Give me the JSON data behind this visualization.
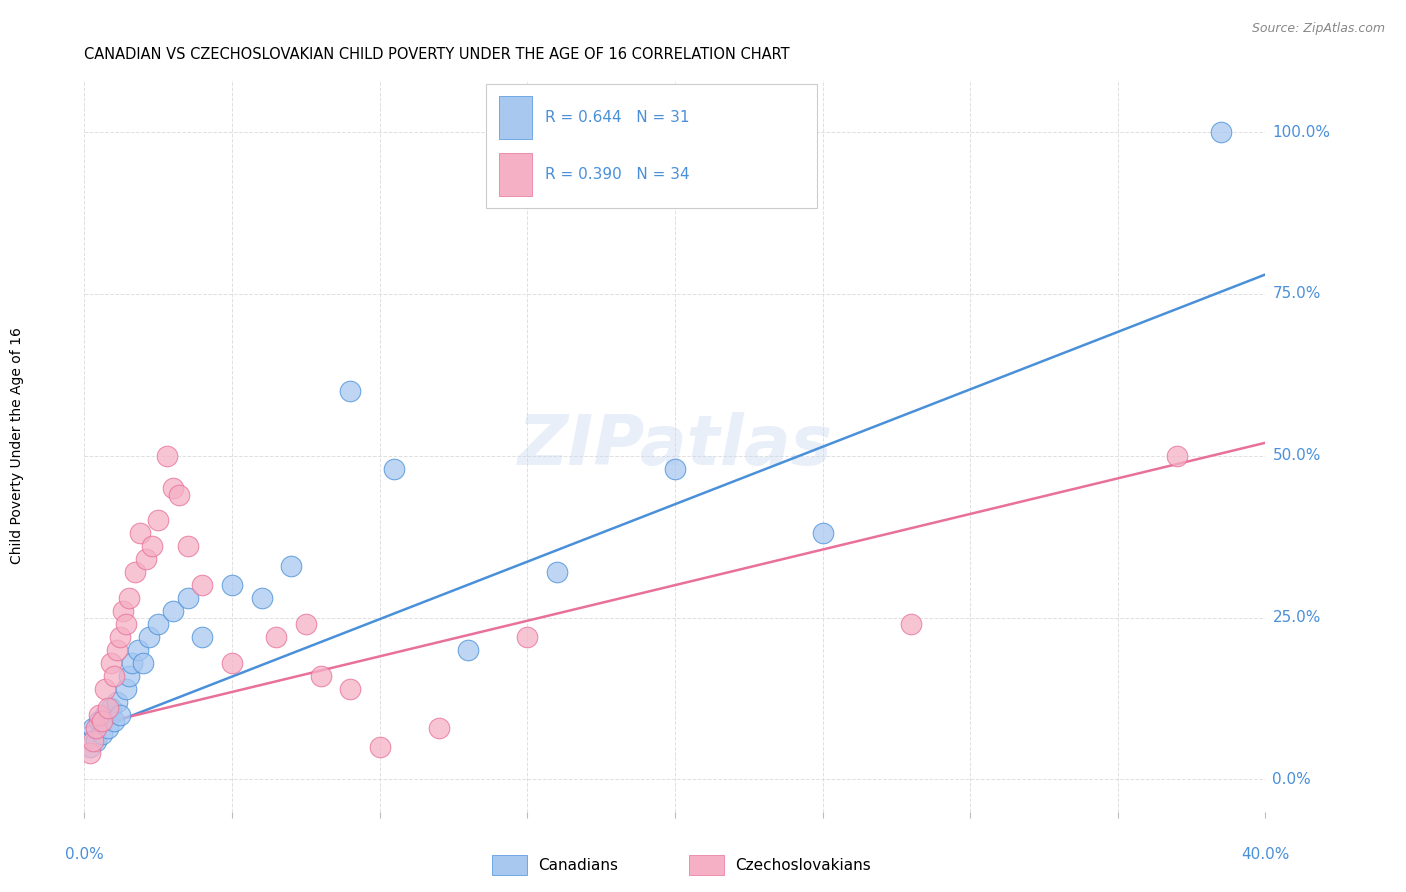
{
  "title": "CANADIAN VS CZECHOSLOVAKIAN CHILD POVERTY UNDER THE AGE OF 16 CORRELATION CHART",
  "source": "Source: ZipAtlas.com",
  "ylabel": "Child Poverty Under the Age of 16",
  "ytick_values": [
    0,
    25,
    50,
    75,
    100
  ],
  "xlim": [
    0,
    40
  ],
  "ylim": [
    -5,
    108
  ],
  "canadian_R": "0.644",
  "canadian_N": "31",
  "czech_R": "0.390",
  "czech_N": "34",
  "canadian_color": "#a8c8f0",
  "czech_color": "#f5b0c5",
  "canadian_line_color": "#4a90d9",
  "czech_line_color": "#e8709a",
  "watermark": "ZIPatlas",
  "canadian_line": [
    0,
    7,
    40,
    78
  ],
  "czech_line": [
    0,
    8,
    40,
    52
  ],
  "canadian_points": [
    [
      0.2,
      5
    ],
    [
      0.3,
      8
    ],
    [
      0.4,
      6
    ],
    [
      0.5,
      9
    ],
    [
      0.6,
      7
    ],
    [
      0.7,
      10
    ],
    [
      0.8,
      8
    ],
    [
      0.9,
      11
    ],
    [
      1.0,
      9
    ],
    [
      1.1,
      12
    ],
    [
      1.2,
      10
    ],
    [
      1.4,
      14
    ],
    [
      1.5,
      16
    ],
    [
      1.6,
      18
    ],
    [
      1.8,
      20
    ],
    [
      2.0,
      18
    ],
    [
      2.2,
      22
    ],
    [
      2.5,
      24
    ],
    [
      3.0,
      26
    ],
    [
      3.5,
      28
    ],
    [
      4.0,
      22
    ],
    [
      5.0,
      30
    ],
    [
      6.0,
      28
    ],
    [
      7.0,
      33
    ],
    [
      9.0,
      60
    ],
    [
      10.5,
      48
    ],
    [
      13.0,
      20
    ],
    [
      16.0,
      32
    ],
    [
      20.0,
      48
    ],
    [
      25.0,
      38
    ],
    [
      38.5,
      100
    ]
  ],
  "czech_points": [
    [
      0.2,
      4
    ],
    [
      0.3,
      6
    ],
    [
      0.4,
      8
    ],
    [
      0.5,
      10
    ],
    [
      0.6,
      9
    ],
    [
      0.7,
      14
    ],
    [
      0.8,
      11
    ],
    [
      0.9,
      18
    ],
    [
      1.0,
      16
    ],
    [
      1.1,
      20
    ],
    [
      1.2,
      22
    ],
    [
      1.3,
      26
    ],
    [
      1.4,
      24
    ],
    [
      1.5,
      28
    ],
    [
      1.7,
      32
    ],
    [
      1.9,
      38
    ],
    [
      2.1,
      34
    ],
    [
      2.3,
      36
    ],
    [
      2.5,
      40
    ],
    [
      2.8,
      50
    ],
    [
      3.0,
      45
    ],
    [
      3.2,
      44
    ],
    [
      3.5,
      36
    ],
    [
      4.0,
      30
    ],
    [
      5.0,
      18
    ],
    [
      6.5,
      22
    ],
    [
      7.5,
      24
    ],
    [
      8.0,
      16
    ],
    [
      9.0,
      14
    ],
    [
      10.0,
      5
    ],
    [
      12.0,
      8
    ],
    [
      15.0,
      22
    ],
    [
      28.0,
      24
    ],
    [
      37.0,
      50
    ]
  ],
  "background_color": "#ffffff",
  "grid_color": "#d8d8d8"
}
